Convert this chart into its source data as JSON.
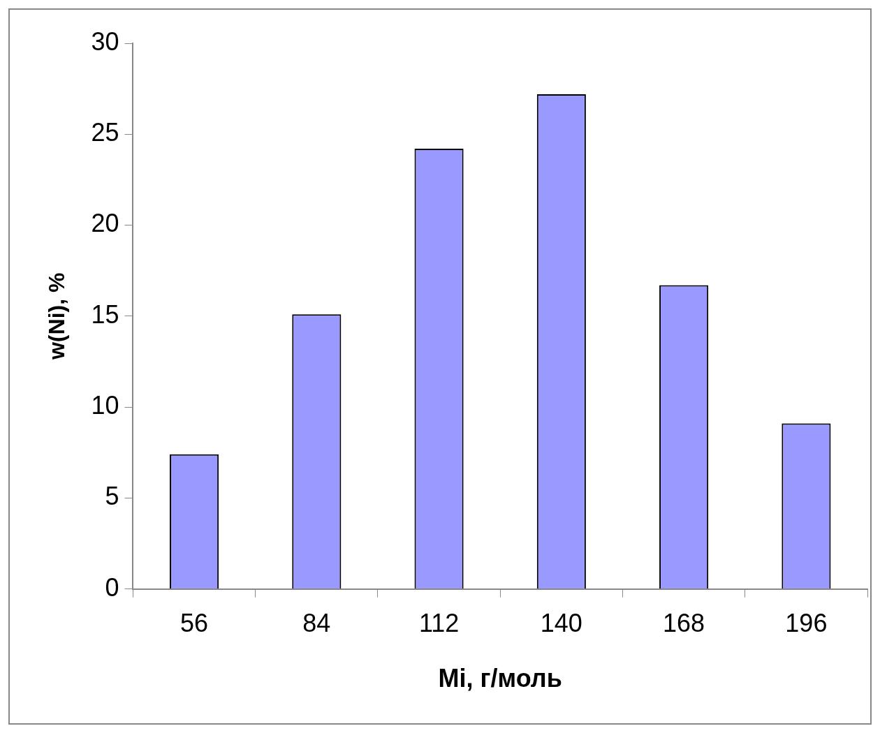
{
  "chart_data": {
    "type": "bar",
    "xlabel": "Mi, г/моль",
    "ylabel": "w(Ni), %",
    "categories": [
      "56",
      "84",
      "112",
      "140",
      "168",
      "196"
    ],
    "values": [
      7.4,
      15.1,
      24.2,
      27.2,
      16.7,
      9.1
    ],
    "color": "#9999ff",
    "ylim": [
      0,
      30
    ],
    "yticks": [
      0,
      5,
      10,
      15,
      20,
      25,
      30
    ],
    "grid": false,
    "legend": false
  }
}
